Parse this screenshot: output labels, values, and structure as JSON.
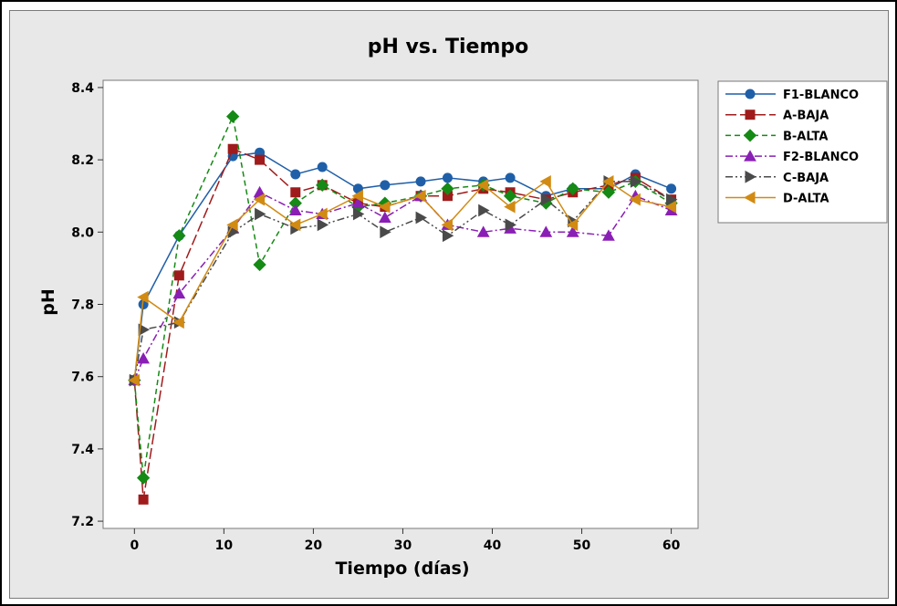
{
  "chart_data": {
    "type": "line",
    "title": "pH vs. Tiempo",
    "xlabel": "Tiempo (días)",
    "ylabel": "pH",
    "xlim": [
      -3.5,
      63
    ],
    "ylim": [
      7.18,
      8.42
    ],
    "xticks": [
      0,
      10,
      20,
      30,
      40,
      50,
      60
    ],
    "yticks": [
      7.2,
      7.4,
      7.6,
      7.8,
      8.0,
      8.2,
      8.4
    ],
    "ytick_labels": [
      "7.2",
      "7.4",
      "7.6",
      "7.8",
      "8.0",
      "8.2",
      "8.4"
    ],
    "grid": false,
    "legend_position": "right",
    "x": [
      0,
      1,
      5,
      11,
      14,
      18,
      21,
      25,
      28,
      32,
      35,
      39,
      42,
      46,
      49,
      53,
      56,
      60
    ],
    "series": [
      {
        "name": "F1-BLANCO",
        "color": "#1f5fa8",
        "marker": "circle",
        "dash": "solid",
        "values": [
          7.59,
          7.8,
          7.99,
          8.21,
          8.22,
          8.16,
          8.18,
          8.12,
          8.13,
          8.14,
          8.15,
          8.14,
          8.15,
          8.1,
          8.12,
          8.12,
          8.16,
          8.12
        ]
      },
      {
        "name": "A-BAJA",
        "color": "#a01b1b",
        "marker": "square",
        "dash": "longdash",
        "values": [
          7.59,
          7.26,
          7.88,
          8.23,
          8.2,
          8.11,
          8.13,
          8.08,
          8.07,
          8.1,
          8.1,
          8.12,
          8.11,
          8.09,
          8.11,
          8.13,
          8.15,
          8.09
        ]
      },
      {
        "name": "B-ALTA",
        "color": "#158a15",
        "marker": "diamond",
        "dash": "dash",
        "values": [
          7.59,
          7.32,
          7.99,
          8.32,
          7.91,
          8.08,
          8.13,
          8.07,
          8.08,
          8.1,
          8.12,
          8.13,
          8.1,
          8.08,
          8.12,
          8.11,
          8.14,
          8.08
        ]
      },
      {
        "name": "F2-BLANCO",
        "color": "#8a1fb5",
        "marker": "triangle-up",
        "dash": "dashdot",
        "values": [
          7.59,
          7.65,
          7.83,
          8.01,
          8.11,
          8.06,
          8.05,
          8.08,
          8.04,
          8.1,
          8.02,
          8.0,
          8.01,
          8.0,
          8.0,
          7.99,
          8.1,
          8.06
        ]
      },
      {
        "name": "C-BAJA",
        "color": "#4a4a4a",
        "marker": "triangle-right",
        "dash": "dashdotdot",
        "values": [
          7.59,
          7.73,
          7.75,
          8.0,
          8.05,
          8.01,
          8.02,
          8.05,
          8.0,
          8.04,
          7.99,
          8.06,
          8.02,
          8.09,
          8.03,
          8.14,
          8.14,
          8.09
        ]
      },
      {
        "name": "D-ALTA",
        "color": "#d18a12",
        "marker": "triangle-left",
        "dash": "solid",
        "values": [
          7.59,
          7.82,
          7.75,
          8.02,
          8.09,
          8.02,
          8.05,
          8.1,
          8.07,
          8.1,
          8.02,
          8.13,
          8.07,
          8.14,
          8.02,
          8.14,
          8.09,
          8.07
        ]
      }
    ]
  }
}
